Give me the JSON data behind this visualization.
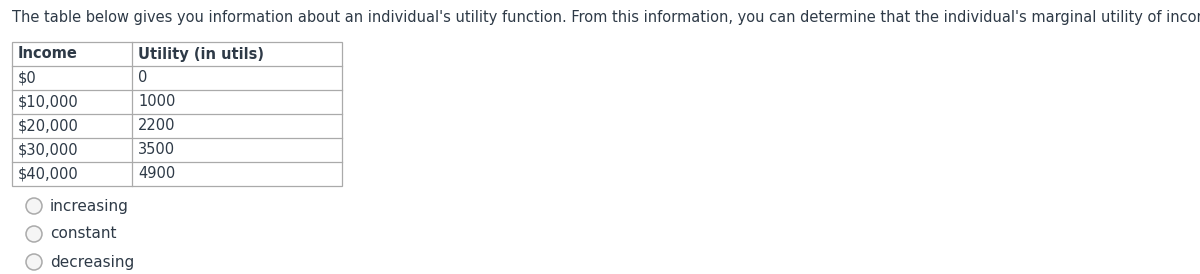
{
  "question_text": "The table below gives you information about an individual's utility function. From this information, you can determine that the individual's marginal utility of income is ____.",
  "table_headers": [
    "Income",
    "Utility (in utils)"
  ],
  "table_rows": [
    [
      "$0",
      "0"
    ],
    [
      "$10,000",
      "1000"
    ],
    [
      "$20,000",
      "2200"
    ],
    [
      "$30,000",
      "3500"
    ],
    [
      "$40,000",
      "4900"
    ]
  ],
  "options": [
    "increasing",
    "constant",
    "decreasing"
  ],
  "bg_color": "#ffffff",
  "text_color": "#2e3a47",
  "table_border_color": "#aaaaaa",
  "font_size_question": 10.5,
  "font_size_table": 10.5,
  "font_size_options": 11
}
